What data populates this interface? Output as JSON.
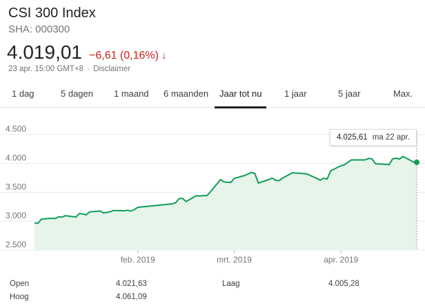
{
  "header": {
    "title": "CSI 300 Index",
    "ticker": "SHA: 000300",
    "price": "4.019,01",
    "change": "−6,61 (0,16%)",
    "change_arrow": "↓",
    "timestamp": "23 apr. 15:00 GMT+8",
    "separator": "·",
    "disclaimer": "Disclaimer"
  },
  "tabs": [
    {
      "label": "1 dag"
    },
    {
      "label": "5 dagen"
    },
    {
      "label": "1 maand"
    },
    {
      "label": "6 maanden"
    },
    {
      "label": "Jaar tot nu",
      "active": true
    },
    {
      "label": "1 jaar"
    },
    {
      "label": "5 jaar"
    },
    {
      "label": "Max."
    }
  ],
  "tooltip": {
    "value": "4.025,61",
    "date": "ma 22 apr."
  },
  "stats": {
    "open_label": "Open",
    "open_value": "4.021,63",
    "high_label": "Hoog",
    "high_value": "4.061,09",
    "low_label": "Laag",
    "low_value": "4.005,28"
  },
  "colors": {
    "line": "#0f9d58",
    "fill": "#e6f4ea",
    "negative": "#c5221f"
  },
  "chart_data": {
    "type": "area",
    "y_tick_labels": [
      "4.500",
      "4.000",
      "3.500",
      "3.000",
      "2.500"
    ],
    "y_ticks": [
      4500,
      4000,
      3500,
      3000,
      2500
    ],
    "ylim": [
      2500,
      4700
    ],
    "x_tick_labels": [
      "feb. 2019",
      "mrt. 2019",
      "apr. 2019"
    ],
    "x_ticks": [
      "2019-02-01",
      "2019-03-01",
      "2019-04-01"
    ],
    "grid": true,
    "series": [
      {
        "x": [
          "2019-01-02",
          "2019-01-03",
          "2019-01-04",
          "2019-01-07",
          "2019-01-08",
          "2019-01-09",
          "2019-01-10",
          "2019-01-11",
          "2019-01-14",
          "2019-01-15",
          "2019-01-16",
          "2019-01-17",
          "2019-01-18",
          "2019-01-21",
          "2019-01-22",
          "2019-01-23",
          "2019-01-24",
          "2019-01-25",
          "2019-01-28",
          "2019-01-29",
          "2019-01-30",
          "2019-01-31",
          "2019-02-01",
          "2019-02-11",
          "2019-02-12",
          "2019-02-13",
          "2019-02-14",
          "2019-02-15",
          "2019-02-18",
          "2019-02-19",
          "2019-02-20",
          "2019-02-21",
          "2019-02-22",
          "2019-02-25",
          "2019-02-26",
          "2019-02-27",
          "2019-02-28",
          "2019-03-01",
          "2019-03-04",
          "2019-03-05",
          "2019-03-06",
          "2019-03-07",
          "2019-03-08",
          "2019-03-11",
          "2019-03-12",
          "2019-03-13",
          "2019-03-14",
          "2019-03-15",
          "2019-03-18",
          "2019-03-19",
          "2019-03-20",
          "2019-03-21",
          "2019-03-22",
          "2019-03-25",
          "2019-03-26",
          "2019-03-27",
          "2019-03-28",
          "2019-03-29",
          "2019-04-01",
          "2019-04-02",
          "2019-04-03",
          "2019-04-04",
          "2019-04-08",
          "2019-04-09",
          "2019-04-10",
          "2019-04-11",
          "2019-04-12",
          "2019-04-15",
          "2019-04-16",
          "2019-04-17",
          "2019-04-18",
          "2019-04-19",
          "2019-04-22",
          "2019-04-23"
        ],
        "y": [
          2970,
          2965,
          3035,
          3050,
          3045,
          3075,
          3070,
          3095,
          3070,
          3130,
          3125,
          3110,
          3160,
          3175,
          3145,
          3150,
          3165,
          3185,
          3180,
          3190,
          3175,
          3200,
          3240,
          3300,
          3320,
          3390,
          3395,
          3340,
          3440,
          3435,
          3445,
          3440,
          3500,
          3720,
          3680,
          3675,
          3670,
          3740,
          3790,
          3815,
          3845,
          3825,
          3660,
          3720,
          3745,
          3710,
          3700,
          3745,
          3840,
          3830,
          3830,
          3825,
          3820,
          3740,
          3710,
          3745,
          3730,
          3870,
          3960,
          3975,
          4020,
          4060,
          4060,
          4085,
          4080,
          3995,
          3990,
          3980,
          4080,
          4090,
          4075,
          4120,
          4025.61,
          4019.01
        ]
      }
    ]
  }
}
